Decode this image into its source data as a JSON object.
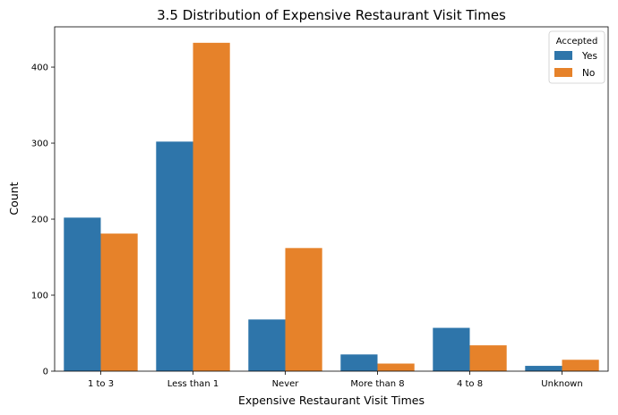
{
  "chart_data": {
    "type": "bar",
    "title": "3.5 Distribution of Expensive Restaurant Visit Times",
    "xlabel": "Expensive Restaurant Visit Times",
    "ylabel": "Count",
    "categories": [
      "1 to 3",
      "Less than 1",
      "Never",
      "More than 8",
      "4 to 8",
      "Unknown"
    ],
    "series": [
      {
        "name": "Yes",
        "color": "#2e75aa",
        "values": [
          202,
          302,
          68,
          22,
          57,
          7
        ]
      },
      {
        "name": "No",
        "color": "#e6822a",
        "values": [
          181,
          432,
          162,
          10,
          34,
          15
        ]
      }
    ],
    "ylim": [
      0,
      453
    ],
    "yticks": [
      0,
      100,
      200,
      300,
      400
    ],
    "grid": false,
    "legend": {
      "title": "Accepted",
      "placement": "top-right"
    }
  }
}
